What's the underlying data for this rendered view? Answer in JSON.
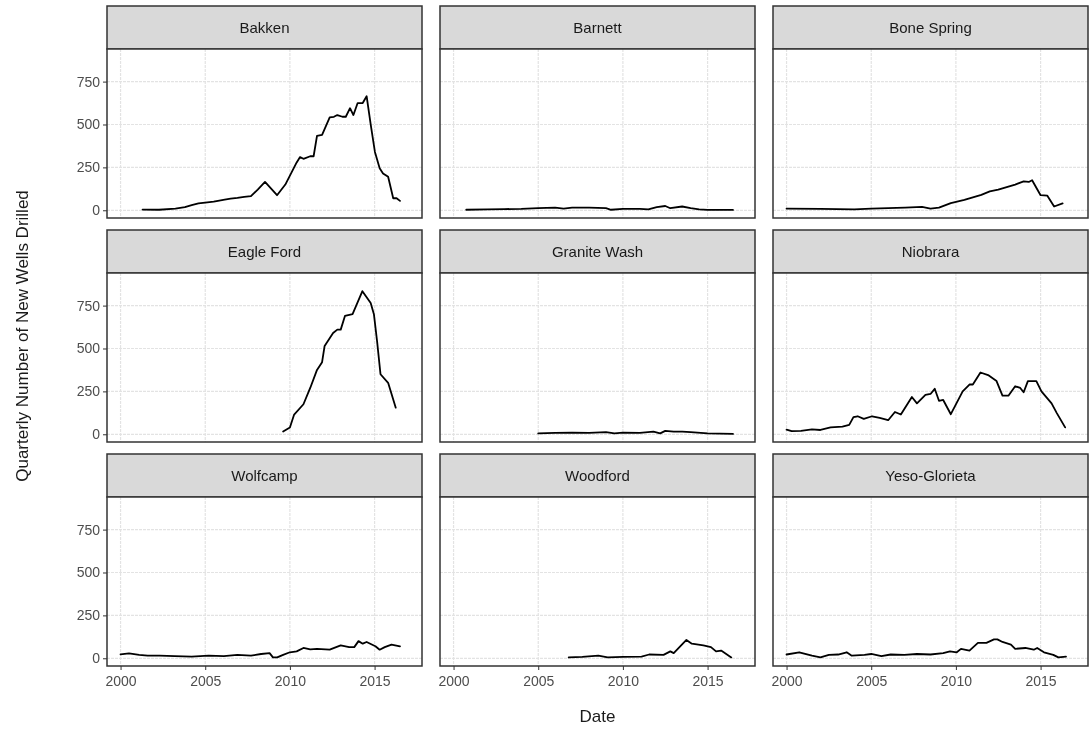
{
  "chart_data": [
    {
      "type": "line",
      "title": "Bakken",
      "x": [
        2001.3,
        2002.27,
        2003.24,
        2003.8,
        2004.2,
        2004.6,
        2005,
        2005.5,
        2005.75,
        2006.15,
        2006.5,
        2006.9,
        2007.3,
        2007.7,
        2008.1,
        2008.53,
        2009.24,
        2009.73,
        2010.4,
        2010.6,
        2010.8,
        2011.2,
        2011.4,
        2011.6,
        2011.9,
        2012.35,
        2012.6,
        2012.8,
        2013.1,
        2013.3,
        2013.55,
        2013.75,
        2014,
        2014.3,
        2014.53,
        2014.77,
        2015.02,
        2015.3,
        2015.5,
        2015.8,
        2016.1,
        2016.3,
        2016.5
      ],
      "values": [
        4,
        3,
        10,
        18,
        30,
        40,
        45,
        50,
        55,
        62,
        68,
        72,
        78,
        82,
        120,
        165,
        88,
        150,
        279,
        310,
        300,
        315,
        315,
        434,
        440,
        541,
        545,
        555,
        545,
        545,
        595,
        555,
        625,
        625,
        665,
        500,
        340,
        245,
        215,
        195,
        70,
        70,
        55
      ],
      "color": "#000000",
      "xlim": [
        1999.2,
        2017.8
      ],
      "ylim": [
        -45,
        940
      ],
      "xticks": [
        2000,
        2005,
        2010,
        2015
      ],
      "yticks": [
        0,
        250,
        500,
        750
      ],
      "grid": true,
      "tick_labels": "y"
    },
    {
      "type": "line",
      "title": "Barnett",
      "x": [
        2000.75,
        2002,
        2003,
        2004,
        2005,
        2006,
        2006.5,
        2007,
        2008,
        2009,
        2009.3,
        2010,
        2011,
        2011.5,
        2012,
        2012.5,
        2012.8,
        2013.5,
        2014,
        2014.5,
        2015,
        2016.5
      ],
      "values": [
        3,
        5,
        7,
        8,
        12,
        15,
        10,
        15,
        15,
        12,
        3,
        8,
        8,
        5,
        18,
        25,
        12,
        22,
        12,
        5,
        2,
        2
      ],
      "color": "#000000",
      "xlim": [
        1999.2,
        2017.8
      ],
      "ylim": [
        -45,
        940
      ],
      "xticks": [
        2000,
        2005,
        2010,
        2015
      ],
      "yticks": [
        0,
        250,
        500,
        750
      ],
      "grid": true,
      "tick_labels": false
    },
    {
      "type": "line",
      "title": "Bone Spring",
      "x": [
        2000,
        2002,
        2004,
        2005,
        2006,
        2007,
        2008,
        2008.5,
        2009,
        2009.7,
        2010.5,
        2011,
        2011.5,
        2012,
        2012.5,
        2013,
        2013.5,
        2014,
        2014.3,
        2014.5,
        2015,
        2015.4,
        2015.8,
        2016.3
      ],
      "values": [
        10,
        8,
        5,
        10,
        12,
        15,
        20,
        10,
        15,
        42,
        60,
        75,
        90,
        110,
        120,
        135,
        150,
        168,
        165,
        175,
        88,
        85,
        22,
        40
      ],
      "color": "#000000",
      "xlim": [
        1999.2,
        2017.8
      ],
      "ylim": [
        -45,
        940
      ],
      "xticks": [
        2000,
        2005,
        2010,
        2015
      ],
      "yticks": [
        0,
        250,
        500,
        750
      ],
      "grid": true,
      "tick_labels": false
    },
    {
      "type": "line",
      "title": "Eagle Ford",
      "ylabel": "Quarterly Number of New Wells Drilled",
      "x": [
        2009.6,
        2010,
        2010.25,
        2010.8,
        2011.2,
        2011.6,
        2011.9,
        2012.05,
        2012.55,
        2012.8,
        2013,
        2013.25,
        2013.7,
        2014.28,
        2014.77,
        2014.96,
        2015.15,
        2015.35,
        2015.8,
        2016.25
      ],
      "values": [
        16,
        40,
        115,
        175,
        270,
        375,
        420,
        515,
        590,
        610,
        610,
        690,
        700,
        834,
        765,
        700,
        540,
        350,
        300,
        155
      ],
      "color": "#000000",
      "xlim": [
        1999.2,
        2017.8
      ],
      "ylim": [
        -45,
        940
      ],
      "xticks": [
        2000,
        2005,
        2010,
        2015
      ],
      "yticks": [
        0,
        250,
        500,
        750
      ],
      "grid": true,
      "tick_labels": "y"
    },
    {
      "type": "line",
      "title": "Granite Wash",
      "x": [
        2005,
        2006,
        2007,
        2008,
        2009,
        2009.5,
        2010,
        2011,
        2011.8,
        2012.2,
        2012.5,
        2013,
        2013.5,
        2014,
        2015,
        2016.5
      ],
      "values": [
        5,
        8,
        10,
        8,
        12,
        5,
        10,
        8,
        15,
        5,
        20,
        15,
        15,
        12,
        5,
        2
      ],
      "color": "#000000",
      "xlim": [
        1999.2,
        2017.8
      ],
      "ylim": [
        -45,
        940
      ],
      "xticks": [
        2000,
        2005,
        2010,
        2015
      ],
      "yticks": [
        0,
        250,
        500,
        750
      ],
      "grid": true,
      "tick_labels": false
    },
    {
      "type": "line",
      "title": "Niobrara",
      "x": [
        2000,
        2000.3,
        2000.85,
        2001.5,
        2002,
        2002.6,
        2003.3,
        2003.7,
        2003.95,
        2004.2,
        2004.56,
        2005.05,
        2005.5,
        2006,
        2006.4,
        2006.75,
        2007.4,
        2007.7,
        2008.2,
        2008.5,
        2008.75,
        2009,
        2009.25,
        2009.7,
        2010.4,
        2010.8,
        2011,
        2011.45,
        2011.9,
        2012.4,
        2012.75,
        2013.1,
        2013.5,
        2013.8,
        2014,
        2014.25,
        2014.75,
        2015.05,
        2015.65,
        2015.95,
        2016.45
      ],
      "values": [
        27,
        18,
        20,
        28,
        25,
        40,
        45,
        55,
        100,
        105,
        90,
        105,
        95,
        82,
        130,
        115,
        217,
        180,
        230,
        235,
        265,
        195,
        200,
        117,
        250,
        290,
        290,
        360,
        345,
        310,
        225,
        225,
        280,
        270,
        245,
        310,
        310,
        250,
        180,
        125,
        40
      ],
      "color": "#000000",
      "xlim": [
        1999.2,
        2017.8
      ],
      "ylim": [
        -45,
        940
      ],
      "xticks": [
        2000,
        2005,
        2010,
        2015
      ],
      "yticks": [
        0,
        250,
        500,
        750
      ],
      "grid": true,
      "tick_labels": false
    },
    {
      "type": "line",
      "title": "Wolfcamp",
      "x": [
        2000,
        2000.5,
        2001.1,
        2001.6,
        2002.3,
        2003.2,
        2004.2,
        2005.2,
        2006.1,
        2006.9,
        2007.7,
        2008.3,
        2008.8,
        2009,
        2009.25,
        2009.6,
        2010,
        2010.4,
        2010.8,
        2011.2,
        2011.6,
        2012.35,
        2013,
        2013.5,
        2013.8,
        2014.05,
        2014.3,
        2014.53,
        2015.05,
        2015.3,
        2015.6,
        2016,
        2016.5
      ],
      "values": [
        23,
        28,
        20,
        15,
        15,
        12,
        10,
        15,
        12,
        20,
        15,
        25,
        30,
        5,
        5,
        20,
        35,
        40,
        60,
        52,
        55,
        50,
        75,
        65,
        65,
        100,
        85,
        95,
        70,
        50,
        65,
        80,
        70
      ],
      "color": "#000000",
      "xlim": [
        1999.2,
        2017.8
      ],
      "ylim": [
        -45,
        940
      ],
      "xticks": [
        2000,
        2005,
        2010,
        2015
      ],
      "yticks": [
        0,
        250,
        500,
        750
      ],
      "grid": true
    },
    {
      "type": "line",
      "title": "Woodford",
      "xlabel": "Date",
      "x": [
        2006.8,
        2007.6,
        2008.55,
        2009.1,
        2010,
        2011.1,
        2011.55,
        2012.4,
        2012.8,
        2013,
        2013.75,
        2014.07,
        2014.75,
        2015.2,
        2015.5,
        2015.8,
        2016.4
      ],
      "values": [
        5,
        8,
        15,
        5,
        8,
        10,
        22,
        20,
        40,
        30,
        107,
        85,
        75,
        65,
        40,
        45,
        5
      ],
      "color": "#000000",
      "xlim": [
        1999.2,
        2017.8
      ],
      "ylim": [
        -45,
        940
      ],
      "xticks": [
        2000,
        2005,
        2010,
        2015
      ],
      "yticks": [
        0,
        250,
        500,
        750
      ],
      "grid": true,
      "tick_labels": "x"
    },
    {
      "type": "line",
      "title": "Yeso-Glorieta",
      "x": [
        2000,
        2000.75,
        2001.5,
        2002,
        2002.5,
        2003.05,
        2003.55,
        2003.85,
        2004.6,
        2005,
        2005.6,
        2006.15,
        2006.95,
        2007.7,
        2008.5,
        2009.25,
        2009.65,
        2010.05,
        2010.3,
        2010.8,
        2011.3,
        2011.8,
        2012.25,
        2012.45,
        2012.75,
        2013.25,
        2013.5,
        2014.1,
        2014.6,
        2014.8,
        2015.2,
        2015.75,
        2016.05,
        2016.5
      ],
      "values": [
        22,
        35,
        15,
        5,
        20,
        22,
        35,
        15,
        20,
        25,
        12,
        22,
        20,
        25,
        22,
        30,
        40,
        35,
        55,
        45,
        90,
        90,
        110,
        110,
        95,
        80,
        55,
        60,
        50,
        60,
        35,
        20,
        5,
        10
      ],
      "color": "#000000",
      "xlim": [
        1999.2,
        2017.8
      ],
      "ylim": [
        -45,
        940
      ],
      "xticks": [
        2000,
        2005,
        2010,
        2015
      ],
      "yticks": [
        0,
        250,
        500,
        750
      ],
      "grid": true,
      "tick_labels": "x"
    }
  ]
}
